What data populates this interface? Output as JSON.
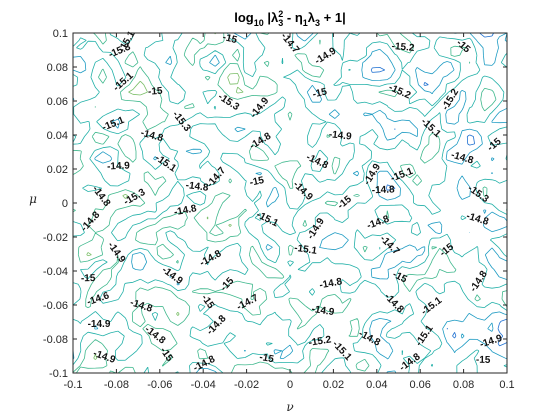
{
  "chart_data": {
    "type": "contour",
    "title_parts": {
      "prefix": "log",
      "sub10": "10",
      "expr1": " |λ",
      "sup": "2",
      "sub3a": "3",
      "expr2": " - η",
      "sub1": "1",
      "expr3": "λ",
      "sub3b": "3",
      "expr4": " + 1|"
    },
    "xlabel": "ν",
    "ylabel": "μ",
    "xlim": [
      -0.1,
      0.1
    ],
    "ylim": [
      -0.1,
      0.1
    ],
    "xticks": [
      "-0.1",
      "-0.08",
      "-0.06",
      "-0.04",
      "-0.02",
      "0",
      "0.02",
      "0.04",
      "0.06",
      "0.08",
      "0.1"
    ],
    "yticks": [
      "-0.1",
      "-0.08",
      "-0.06",
      "-0.04",
      "-0.02",
      "0",
      "0.02",
      "0.04",
      "0.06",
      "0.08",
      "0.1"
    ],
    "levels": [
      -15.3,
      -15.2,
      -15.1,
      -15.0,
      -14.9,
      -14.8,
      -14.7,
      -14.6
    ],
    "level_colors": [
      "#1d3fbf",
      "#1d6fd1",
      "#1e9bc3",
      "#22b0a8",
      "#3fb88d",
      "#7cbf6a",
      "#b7bd4c",
      "#d9b23a"
    ],
    "contour_labels": [
      {
        "text": "-15.1",
        "x": -0.074,
        "y": 0.094
      },
      {
        "text": "-15.3",
        "x": -0.078,
        "y": 0.088
      },
      {
        "text": "-15",
        "x": -0.028,
        "y": 0.095
      },
      {
        "text": "-14.7",
        "x": -0.001,
        "y": 0.093
      },
      {
        "text": "-14.9",
        "x": 0.017,
        "y": 0.085
      },
      {
        "text": "-15.2",
        "x": 0.052,
        "y": 0.09
      },
      {
        "text": "-15",
        "x": 0.079,
        "y": 0.091
      },
      {
        "text": "-15.1",
        "x": -0.076,
        "y": 0.07
      },
      {
        "text": "-15",
        "x": -0.062,
        "y": 0.064
      },
      {
        "text": "-15.3",
        "x": -0.029,
        "y": 0.058
      },
      {
        "text": "-14.9",
        "x": -0.013,
        "y": 0.055
      },
      {
        "text": "-15",
        "x": 0.014,
        "y": 0.063
      },
      {
        "text": "-15.2",
        "x": 0.05,
        "y": 0.064
      },
      {
        "text": "-15.2",
        "x": 0.075,
        "y": 0.06
      },
      {
        "text": "-15.1",
        "x": -0.081,
        "y": 0.045
      },
      {
        "text": "-14.8",
        "x": -0.064,
        "y": 0.038
      },
      {
        "text": "-15.3",
        "x": -0.051,
        "y": 0.047
      },
      {
        "text": "-14.8",
        "x": -0.013,
        "y": 0.035
      },
      {
        "text": "-14.9",
        "x": 0.023,
        "y": 0.038
      },
      {
        "text": "-15.1",
        "x": 0.064,
        "y": 0.043
      },
      {
        "text": "-15",
        "x": 0.095,
        "y": 0.033
      },
      {
        "text": "-14.9",
        "x": -0.079,
        "y": 0.02
      },
      {
        "text": "-15.1",
        "x": -0.058,
        "y": 0.022
      },
      {
        "text": "-14.7",
        "x": -0.033,
        "y": 0.014
      },
      {
        "text": "-15",
        "x": -0.015,
        "y": 0.011
      },
      {
        "text": "-14.8",
        "x": 0.012,
        "y": 0.023
      },
      {
        "text": "-14.9",
        "x": 0.039,
        "y": 0.016
      },
      {
        "text": "-15.1",
        "x": 0.052,
        "y": 0.015
      },
      {
        "text": "-14.8",
        "x": 0.079,
        "y": 0.025
      },
      {
        "text": "-14.8",
        "x": -0.088,
        "y": 0.003
      },
      {
        "text": "-15.3",
        "x": -0.071,
        "y": 0.002
      },
      {
        "text": "-14.8",
        "x": -0.043,
        "y": 0.008
      },
      {
        "text": "-14.9",
        "x": 0.005,
        "y": 0.006
      },
      {
        "text": "-15",
        "x": 0.026,
        "y": -0.001
      },
      {
        "text": "-14.8",
        "x": 0.043,
        "y": 0.006
      },
      {
        "text": "-15.3",
        "x": 0.086,
        "y": 0.004
      },
      {
        "text": "-14.8",
        "x": -0.091,
        "y": -0.012
      },
      {
        "text": "-14.8",
        "x": -0.048,
        "y": -0.006
      },
      {
        "text": "-15.1",
        "x": -0.011,
        "y": -0.011
      },
      {
        "text": "-14.9",
        "x": 0.013,
        "y": -0.016
      },
      {
        "text": "-14.8",
        "x": 0.041,
        "y": -0.013
      },
      {
        "text": "-14.8",
        "x": 0.086,
        "y": -0.011
      },
      {
        "text": "-14.9",
        "x": -0.081,
        "y": -0.03
      },
      {
        "text": "-14.8",
        "x": -0.036,
        "y": -0.034
      },
      {
        "text": "-15.1",
        "x": 0.007,
        "y": -0.029
      },
      {
        "text": "-14.7",
        "x": 0.045,
        "y": -0.026
      },
      {
        "text": "-15",
        "x": 0.073,
        "y": -0.029
      },
      {
        "text": "-15",
        "x": -0.093,
        "y": -0.046
      },
      {
        "text": "-14.9",
        "x": -0.055,
        "y": -0.044
      },
      {
        "text": "-15",
        "x": -0.028,
        "y": -0.049
      },
      {
        "text": "-14.8",
        "x": 0.019,
        "y": -0.049
      },
      {
        "text": "-15",
        "x": 0.05,
        "y": -0.045
      },
      {
        "text": "-14.8",
        "x": 0.088,
        "y": -0.047
      },
      {
        "text": "-14.6",
        "x": -0.088,
        "y": -0.058
      },
      {
        "text": "-14.8",
        "x": -0.069,
        "y": -0.062
      },
      {
        "text": "-15",
        "x": -0.039,
        "y": -0.059
      },
      {
        "text": "-14.7",
        "x": -0.019,
        "y": -0.06
      },
      {
        "text": "-14.9",
        "x": 0.015,
        "y": -0.065
      },
      {
        "text": "-14.8",
        "x": 0.047,
        "y": -0.06
      },
      {
        "text": "-15.1",
        "x": 0.066,
        "y": -0.062
      },
      {
        "text": "-14.9",
        "x": -0.088,
        "y": -0.073
      },
      {
        "text": "-14.8",
        "x": -0.063,
        "y": -0.079
      },
      {
        "text": "-14.8",
        "x": -0.033,
        "y": -0.073
      },
      {
        "text": "-15.2",
        "x": 0.014,
        "y": -0.083
      },
      {
        "text": "-14.8",
        "x": 0.036,
        "y": -0.081
      },
      {
        "text": "-15.1",
        "x": 0.063,
        "y": -0.079
      },
      {
        "text": "-14.9",
        "x": 0.093,
        "y": -0.083
      },
      {
        "text": "-14.9",
        "x": -0.086,
        "y": -0.092
      },
      {
        "text": "-15",
        "x": -0.058,
        "y": -0.09
      },
      {
        "text": "-14.8",
        "x": -0.039,
        "y": -0.096
      },
      {
        "text": "-15",
        "x": -0.011,
        "y": -0.093
      },
      {
        "text": "-15.1",
        "x": 0.023,
        "y": -0.088
      },
      {
        "text": "-14.8",
        "x": 0.056,
        "y": -0.095
      },
      {
        "text": "-15",
        "x": 0.089,
        "y": -0.094
      }
    ]
  }
}
